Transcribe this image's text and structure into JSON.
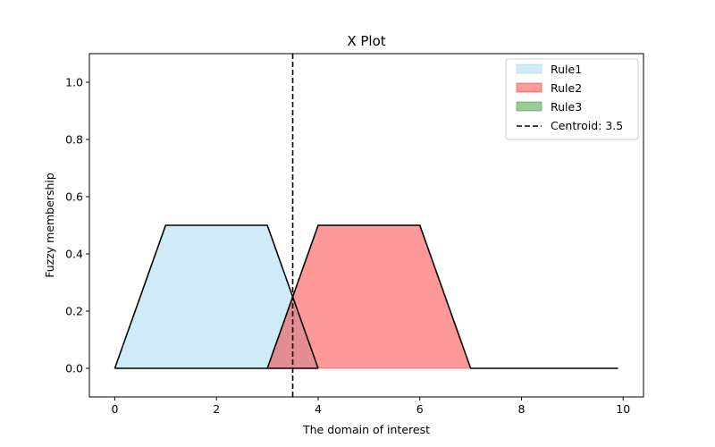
{
  "chart_data": {
    "type": "area",
    "title": "X Plot",
    "xlabel": "The domain of interest",
    "ylabel": "Fuzzy membership",
    "xlim": [
      -0.5,
      10.4
    ],
    "ylim": [
      -0.1,
      1.1
    ],
    "xticks": [
      0,
      2,
      4,
      6,
      8,
      10
    ],
    "yticks": [
      0.0,
      0.2,
      0.4,
      0.6,
      0.8,
      1.0
    ],
    "xtick_labels": [
      "0",
      "2",
      "4",
      "6",
      "8",
      "10"
    ],
    "ytick_labels": [
      "0.0",
      "0.2",
      "0.4",
      "0.6",
      "0.8",
      "1.0"
    ],
    "grid": false,
    "legend_position": "top-right",
    "series": [
      {
        "name": "Rule1",
        "color": "#87CEEB",
        "opacity": 0.4,
        "points": [
          [
            0,
            0
          ],
          [
            1,
            0.5
          ],
          [
            3,
            0.5
          ],
          [
            4,
            0
          ]
        ]
      },
      {
        "name": "Rule2",
        "color": "#FF0000",
        "opacity": 0.4,
        "points": [
          [
            3,
            0
          ],
          [
            4,
            0.5
          ],
          [
            6,
            0.5
          ],
          [
            7,
            0
          ]
        ]
      },
      {
        "name": "Rule3",
        "color": "#008000",
        "opacity": 0.4,
        "points": [
          [
            7,
            0
          ],
          [
            9.9,
            0
          ]
        ]
      }
    ],
    "aggregate_outline": [
      [
        0,
        0
      ],
      [
        1,
        0.5
      ],
      [
        3,
        0.5
      ],
      [
        3.5,
        0.25
      ],
      [
        4,
        0.5
      ],
      [
        6,
        0.5
      ],
      [
        7,
        0
      ],
      [
        9.9,
        0
      ]
    ],
    "centroid": {
      "label": "Centroid: 3.5",
      "value": 3.5
    }
  }
}
